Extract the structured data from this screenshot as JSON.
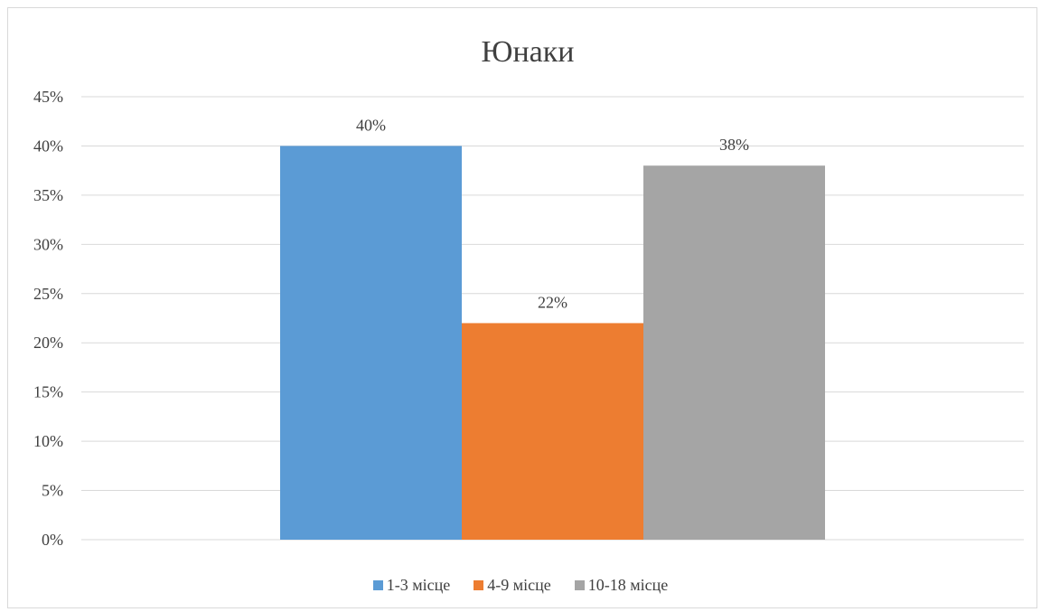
{
  "chart_data": {
    "type": "bar",
    "title": "Юнаки",
    "categories": [
      ""
    ],
    "series": [
      {
        "name": "1-3 місце",
        "values": [
          40
        ],
        "label": "40%",
        "color": "#5b9bd5"
      },
      {
        "name": "4-9 місце",
        "values": [
          22
        ],
        "label": "22%",
        "color": "#ed7d31"
      },
      {
        "name": "10-18 місце",
        "values": [
          38
        ],
        "label": "38%",
        "color": "#a5a5a5"
      }
    ],
    "ylim": [
      0,
      45
    ],
    "yticks": [
      "0%",
      "5%",
      "10%",
      "15%",
      "20%",
      "25%",
      "30%",
      "35%",
      "40%",
      "45%"
    ],
    "xlabel": "",
    "ylabel": "",
    "grid": true,
    "legend_position": "bottom"
  }
}
